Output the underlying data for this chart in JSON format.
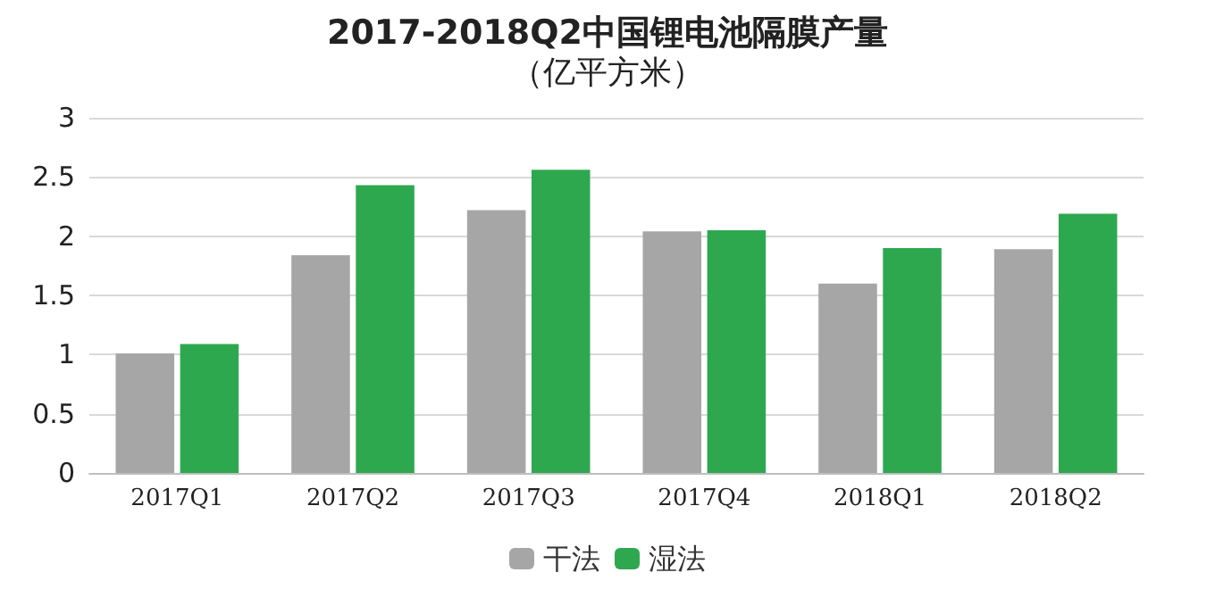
{
  "chart_data": {
    "type": "bar",
    "title": "2017-2018Q2中国锂电池隔膜产量",
    "subtitle": "（亿平方米）",
    "categories": [
      "2017Q1",
      "2017Q2",
      "2017Q3",
      "2017Q4",
      "2018Q1",
      "2018Q2"
    ],
    "series": [
      {
        "name": "干法",
        "color": "#a6a6a6",
        "values": [
          1.01,
          1.84,
          2.22,
          2.04,
          1.6,
          1.89
        ]
      },
      {
        "name": "湿法",
        "color": "#2ea84f",
        "values": [
          1.09,
          2.43,
          2.56,
          2.05,
          1.9,
          2.19
        ]
      }
    ],
    "ylim": [
      0,
      3
    ],
    "yticks": [
      0,
      0.5,
      1,
      1.5,
      2,
      2.5,
      3
    ],
    "grid": "y",
    "legend": "bottom"
  }
}
